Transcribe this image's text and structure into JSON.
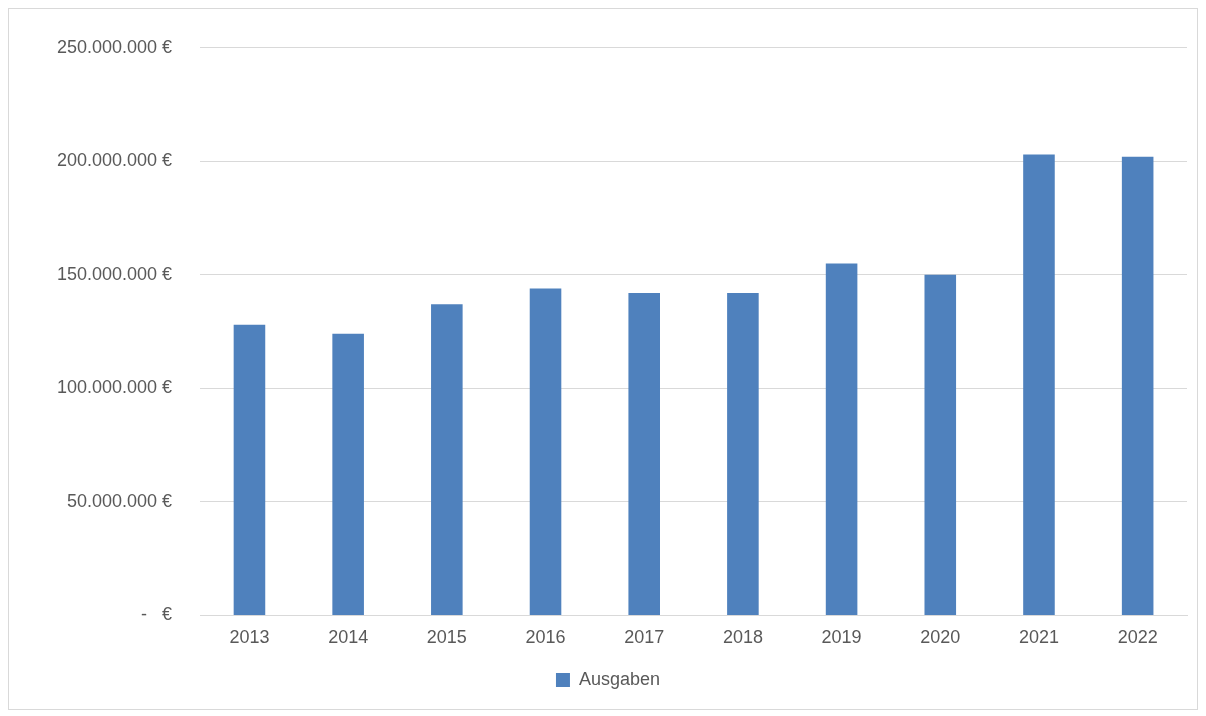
{
  "chart_data": {
    "type": "bar",
    "categories": [
      "2013",
      "2014",
      "2015",
      "2016",
      "2017",
      "2018",
      "2019",
      "2020",
      "2021",
      "2022"
    ],
    "series": [
      {
        "name": "Ausgaben",
        "color": "#4f81bd",
        "values": [
          128000000,
          124000000,
          137000000,
          144000000,
          142000000,
          142000000,
          155000000,
          150000000,
          203000000,
          202000000
        ]
      }
    ],
    "ylim": [
      0,
      250000000
    ],
    "yticks": [
      {
        "value": 0,
        "label": "-   €"
      },
      {
        "value": 50000000,
        "label": "50.000.000 €"
      },
      {
        "value": 100000000,
        "label": "100.000.000 €"
      },
      {
        "value": 150000000,
        "label": "150.000.000 €"
      },
      {
        "value": 200000000,
        "label": "200.000.000 €"
      },
      {
        "value": 250000000,
        "label": "250.000.000 €"
      }
    ],
    "grid": "y",
    "legend": "bottom"
  }
}
